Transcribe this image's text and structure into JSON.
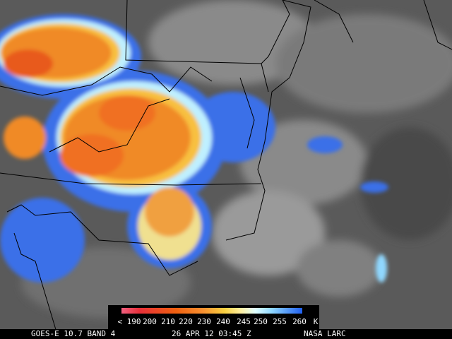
{
  "colorbar": {
    "labels": [
      "< 190",
      "200",
      "210",
      "220",
      "230",
      "240",
      "245",
      "250",
      "255",
      "260"
    ],
    "unit": "K"
  },
  "footer": {
    "left": "GOES-E 10.7 BAND 4",
    "center": "26 APR 12 03:45 Z",
    "right": "NASA LARC"
  }
}
